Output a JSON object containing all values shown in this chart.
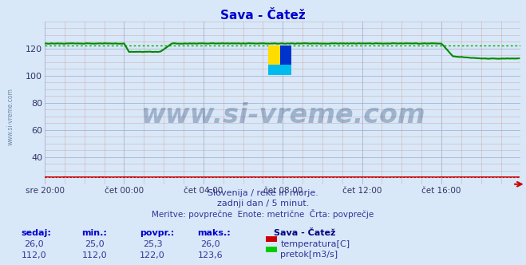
{
  "title": "Sava - Čatež",
  "title_color": "#0000cc",
  "bg_color": "#d8e8f8",
  "plot_bg_color": "#d8e8f8",
  "grid_color_major": "#aaaacc",
  "grid_color_minor": "#cc9999",
  "ylim": [
    20,
    140
  ],
  "yticks": [
    40,
    60,
    80,
    100,
    120
  ],
  "xlim": [
    0,
    288
  ],
  "xtick_labels": [
    "sre 20:00",
    "čet 00:00",
    "čet 04:00",
    "čet 08:00",
    "čet 12:00",
    "čet 16:00"
  ],
  "xtick_positions": [
    0,
    48,
    96,
    144,
    192,
    240
  ],
  "watermark_text": "www.si-vreme.com",
  "watermark_color": "#1a3a6a",
  "watermark_alpha": 0.3,
  "subtitle1": "Slovenija / reke in morje.",
  "subtitle2": "zadnji dan / 5 minut.",
  "subtitle3": "Meritve: povprečne  Enote: metrične  Črta: povprečje",
  "subtitle_color": "#333399",
  "legend_title": "Sava - Čatež",
  "legend_title_color": "#000080",
  "legend_items": [
    {
      "label": "temperatura[C]",
      "color": "#cc0000"
    },
    {
      "label": "pretok[m3/s]",
      "color": "#00cc00"
    }
  ],
  "stats_headers": [
    "sedaj:",
    "min.:",
    "povpr.:",
    "maks.:"
  ],
  "stats_temp": [
    "26,0",
    "25,0",
    "25,3",
    "26,0"
  ],
  "stats_flow": [
    "112,0",
    "112,0",
    "122,0",
    "123,6"
  ],
  "stats_color": "#333399",
  "header_color": "#0000cc",
  "arrow_color": "#cc0000",
  "temp_line_color": "#cc0000",
  "flow_line_color": "#008800",
  "flow_avg_line_color": "#00aa00",
  "flow_avg_value": 122.0,
  "temp_avg_value": 25.3,
  "n_points": 288,
  "side_label": "www.si-vreme.com",
  "side_label_color": "#446688"
}
